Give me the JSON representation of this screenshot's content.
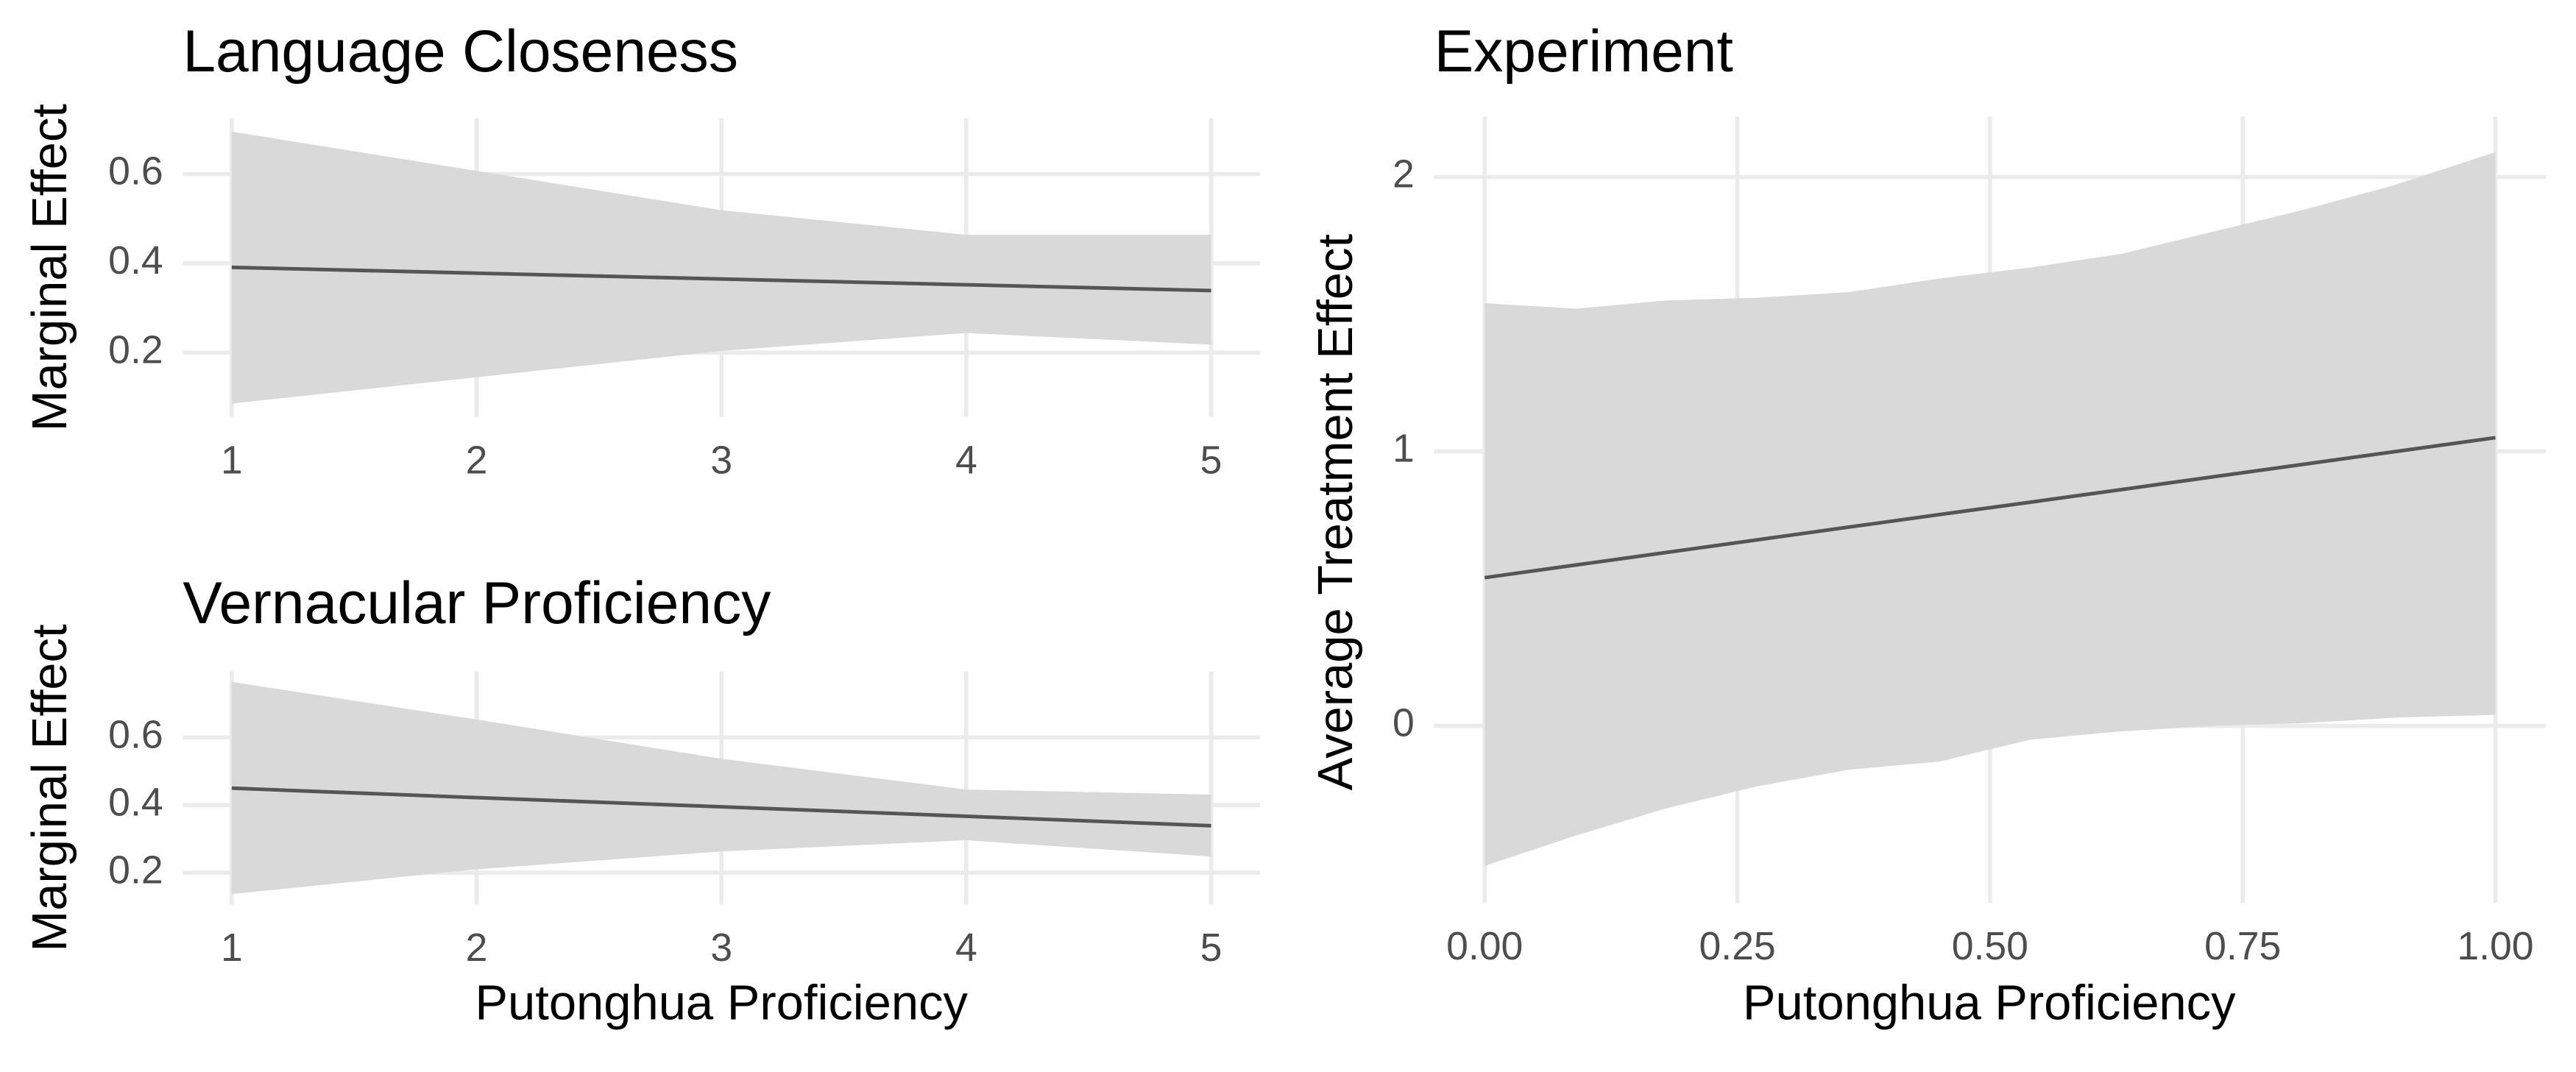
{
  "chart_data": [
    {
      "type": "line",
      "title": "Language Closeness",
      "y_label": "Marginal Effect",
      "x": [
        1,
        2,
        3,
        4,
        5
      ],
      "values": [
        0.391,
        0.378,
        0.365,
        0.352,
        0.339
      ],
      "ci_upper": [
        0.695,
        0.607,
        0.519,
        0.464,
        0.464
      ],
      "ci_lower": [
        0.086,
        0.145,
        0.204,
        0.244,
        0.218
      ],
      "color": "#555555",
      "ribbon_color": "#d9d9d9",
      "xlim": [
        0.8,
        5.2
      ],
      "ylim": [
        0.056,
        0.725
      ],
      "xticks": [
        1,
        2,
        3,
        4,
        5
      ],
      "yticks": [
        0.2,
        0.4,
        0.6
      ],
      "grid": true
    },
    {
      "type": "line",
      "title": "Vernacular Proficiency",
      "y_label": "Marginal Effect",
      "x_label": "Putonghua Proficiency",
      "x": [
        1,
        2,
        3,
        4,
        5
      ],
      "values": [
        0.45,
        0.422,
        0.395,
        0.367,
        0.339
      ],
      "ci_upper": [
        0.764,
        0.653,
        0.537,
        0.446,
        0.431
      ],
      "ci_lower": [
        0.137,
        0.21,
        0.263,
        0.296,
        0.248
      ],
      "color": "#555555",
      "ribbon_color": "#d9d9d9",
      "xlim": [
        0.8,
        5.2
      ],
      "ylim": [
        0.106,
        0.795
      ],
      "xticks": [
        1,
        2,
        3,
        4,
        5
      ],
      "yticks": [
        0.2,
        0.4,
        0.6
      ],
      "grid": true
    },
    {
      "type": "line",
      "title": "Experiment",
      "y_label": "Average Treatment Effect",
      "x_label": "Putonghua Proficiency",
      "x": [
        0,
        0.09,
        0.18,
        0.27,
        0.36,
        0.45,
        0.54,
        0.63,
        0.72,
        0.81,
        0.9,
        1
      ],
      "values": [
        0.54,
        0.586,
        0.632,
        0.678,
        0.724,
        0.77,
        0.815,
        0.861,
        0.907,
        0.953,
        0.999,
        1.05
      ],
      "ci_upper": [
        1.54,
        1.52,
        1.55,
        1.56,
        1.58,
        1.63,
        1.67,
        1.72,
        1.8,
        1.88,
        1.97,
        2.09
      ],
      "ci_lower": [
        -0.51,
        -0.4,
        -0.3,
        -0.22,
        -0.16,
        -0.13,
        -0.05,
        -0.02,
        0,
        0.01,
        0.03,
        0.04
      ],
      "color": "#555555",
      "ribbon_color": "#d9d9d9",
      "xlim": [
        -0.05,
        1.05
      ],
      "ylim": [
        -0.645,
        2.22
      ],
      "xticks": [
        {
          "value": 0,
          "label": "0.00"
        },
        {
          "value": 0.25,
          "label": "0.25"
        },
        {
          "value": 0.5,
          "label": "0.50"
        },
        {
          "value": 0.75,
          "label": "0.75"
        },
        {
          "value": 1,
          "label": "1.00"
        }
      ],
      "yticks": [
        0,
        1,
        2
      ],
      "grid": true
    }
  ]
}
